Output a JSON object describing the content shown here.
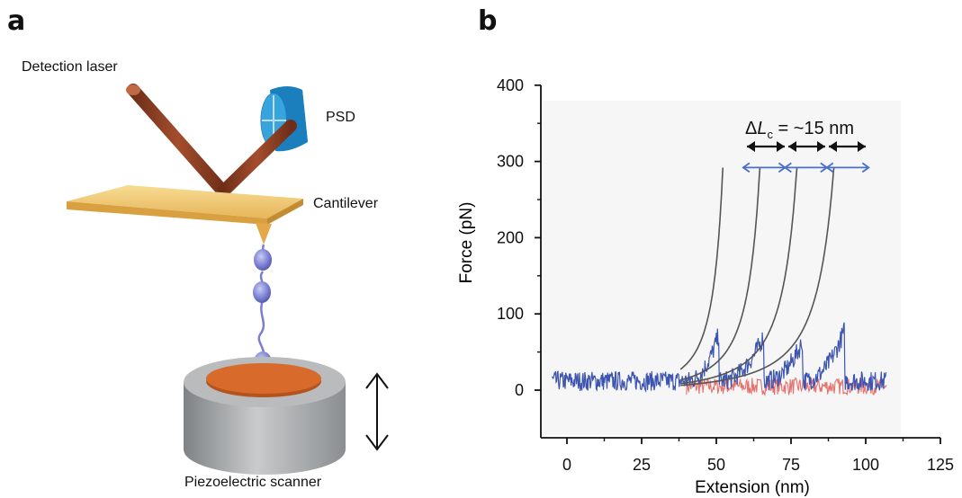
{
  "panel_a": {
    "letter": "a",
    "labels": {
      "detection_laser": "Detection laser",
      "psd": "PSD",
      "cantilever": "Cantilever",
      "scanner": "Piezoelectric scanner"
    },
    "colors": {
      "laser": "#8b3d22",
      "psd": "#1f86c4",
      "cantilever": "#f0c56e",
      "protein": "#7b7fd0",
      "stage": "#d86a2c",
      "scanner": "#a6a9ab"
    }
  },
  "panel_b": {
    "letter": "b",
    "annotation": {
      "prefix": "Δ",
      "symbol": "L",
      "subscript": "c",
      "text": " = ~15 nm"
    }
  },
  "chart_data": {
    "type": "line",
    "xlabel": "Extension (nm)",
    "ylabel": "Force (pN)",
    "xlim": [
      -8,
      125
    ],
    "ylim": [
      -55,
      400
    ],
    "xticks": [
      0,
      25,
      50,
      75,
      100,
      125
    ],
    "yticks": [
      0,
      100,
      200,
      300,
      400
    ],
    "grid": false,
    "series": [
      {
        "color": "#3d55b0",
        "values": [],
        "peaks": [
          {
            "contour_length_nm": 59,
            "rupture_extension_nm": 51,
            "rupture_force_pN": 75
          },
          {
            "contour_length_nm": 73,
            "rupture_extension_nm": 66,
            "rupture_force_pN": 72
          },
          {
            "contour_length_nm": 87,
            "rupture_extension_nm": 79,
            "rupture_force_pN": 65
          },
          {
            "contour_length_nm": 101,
            "rupture_extension_nm": 93,
            "rupture_force_pN": 80
          }
        ],
        "baseline_pN": 12,
        "x_range": [
          -5,
          107
        ]
      },
      {
        "color": "#e25a55",
        "values": [],
        "baseline_pN": 5,
        "x_range": [
          40,
          107
        ]
      }
    ],
    "wlc_fits": [
      59,
      73,
      87,
      101
    ],
    "fit_color": "#555555",
    "delta_Lc_nm": 15,
    "delta_marker_force_pN": 292,
    "delta_color": "#4a6fc8"
  }
}
